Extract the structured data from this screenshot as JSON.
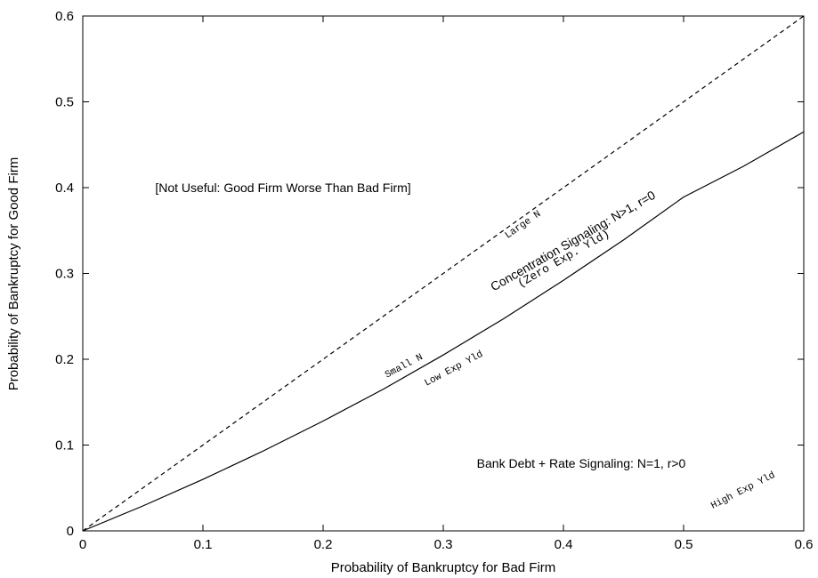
{
  "chart_data": {
    "type": "line",
    "xlabel": "Probability of Bankruptcy for Bad Firm",
    "ylabel": "Probability of Bankruptcy for Good Firm",
    "xlim": [
      0,
      0.6
    ],
    "ylim": [
      0,
      0.6
    ],
    "xticks": [
      "0",
      "0.1",
      "0.2",
      "0.3",
      "0.4",
      "0.5",
      "0.6"
    ],
    "yticks": [
      "0",
      "0.1",
      "0.2",
      "0.3",
      "0.4",
      "0.5",
      "0.6"
    ],
    "grid": false,
    "series": [
      {
        "style": "dashed",
        "x": [
          0,
          0.1,
          0.2,
          0.3,
          0.4,
          0.5,
          0.6
        ],
        "y": [
          0,
          0.1,
          0.2,
          0.3,
          0.4,
          0.5,
          0.6
        ]
      },
      {
        "style": "solid",
        "x": [
          0,
          0.05,
          0.1,
          0.15,
          0.2,
          0.25,
          0.3,
          0.35,
          0.4,
          0.45,
          0.5,
          0.55,
          0.6
        ],
        "y": [
          0,
          0.029,
          0.06,
          0.093,
          0.128,
          0.165,
          0.205,
          0.247,
          0.292,
          0.339,
          0.389,
          0.425,
          0.465
        ]
      }
    ],
    "annotations": {
      "not_useful": "[Not Useful: Good Firm Worse Than Bad Firm]",
      "large_n": "Large N",
      "concentration": "Concentration Signaling: N>1, r=0",
      "zero_exp": "(Zero Exp. Yld)",
      "small_n": "Small N",
      "low_exp": "Low Exp Yld",
      "bank_debt": "Bank Debt + Rate Signaling: N=1, r>0",
      "high_exp": "High Exp Yld"
    }
  }
}
